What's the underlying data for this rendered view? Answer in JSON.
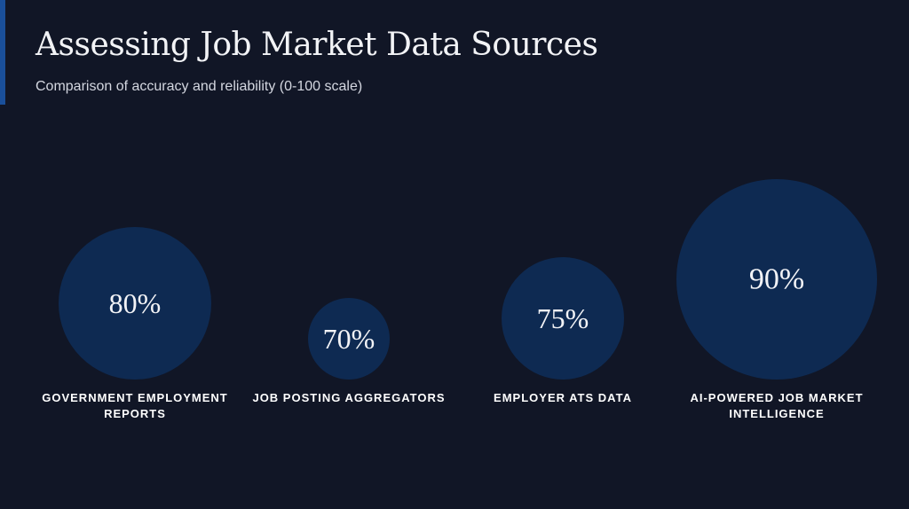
{
  "header": {
    "title": "Assessing Job Market Data Sources",
    "subtitle": "Comparison of accuracy and reliability (0-100 scale)"
  },
  "colors": {
    "background": "#111626",
    "bubble": "#0e2a52",
    "accent": "#1a4f9a",
    "text": "#f2f3f6"
  },
  "chart_data": {
    "type": "bubble",
    "title": "Assessing Job Market Data Sources",
    "subtitle": "Comparison of accuracy and reliability (0-100 scale)",
    "value_suffix": "%",
    "scale": [
      0,
      100
    ],
    "categories": [
      [
        "GOVERNMENT EMPLOYMENT",
        "REPORTS"
      ],
      [
        "JOB POSTING AGGREGATORS"
      ],
      [
        "EMPLOYER ATS DATA"
      ],
      [
        "AI-POWERED JOB MARKET",
        "INTELLIGENCE"
      ]
    ],
    "values": [
      80,
      70,
      75,
      90
    ]
  }
}
